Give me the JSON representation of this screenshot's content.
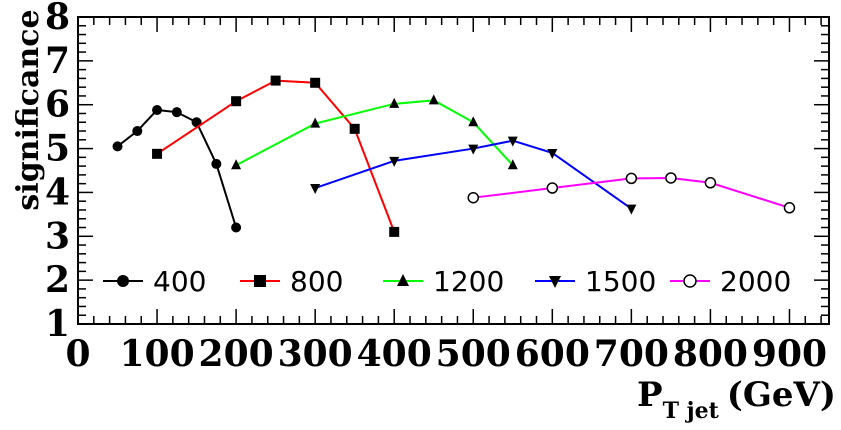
{
  "chart_data": {
    "type": "line",
    "xlabel": {
      "main": "P",
      "sub": "T jet",
      "unit": "(GeV)"
    },
    "ylabel": "significance",
    "xlim": [
      0,
      950
    ],
    "ylim": [
      1,
      8
    ],
    "x_ticks": [
      0,
      100,
      200,
      300,
      400,
      500,
      600,
      700,
      800,
      900
    ],
    "y_ticks": [
      1,
      2,
      3,
      4,
      5,
      6,
      7,
      8
    ],
    "grid": false,
    "legend_position": "bottom",
    "series": [
      {
        "name": "400",
        "color": "#000000",
        "marker": "circle",
        "x": [
          50,
          75,
          100,
          125,
          150,
          175,
          200
        ],
        "y": [
          5.05,
          5.4,
          5.88,
          5.83,
          5.6,
          4.65,
          3.2
        ]
      },
      {
        "name": "800",
        "color": "#ff0000",
        "marker": "square",
        "x": [
          100,
          200,
          250,
          300,
          350,
          400
        ],
        "y": [
          4.88,
          6.08,
          6.55,
          6.5,
          5.45,
          3.1
        ]
      },
      {
        "name": "1200",
        "color": "#00ff00",
        "marker": "triangle-up",
        "x": [
          200,
          300,
          400,
          450,
          500,
          550
        ],
        "y": [
          4.62,
          5.57,
          6.02,
          6.1,
          5.6,
          4.62
        ]
      },
      {
        "name": "1500",
        "color": "#0000ff",
        "marker": "triangle-down",
        "x": [
          300,
          400,
          500,
          550,
          600,
          700
        ],
        "y": [
          4.1,
          4.72,
          5.0,
          5.18,
          4.9,
          3.63
        ]
      },
      {
        "name": "2000",
        "color": "#ff00ff",
        "marker": "open-circle",
        "x": [
          500,
          600,
          700,
          750,
          800,
          900
        ],
        "y": [
          3.88,
          4.1,
          4.32,
          4.33,
          4.22,
          3.65
        ]
      }
    ]
  }
}
